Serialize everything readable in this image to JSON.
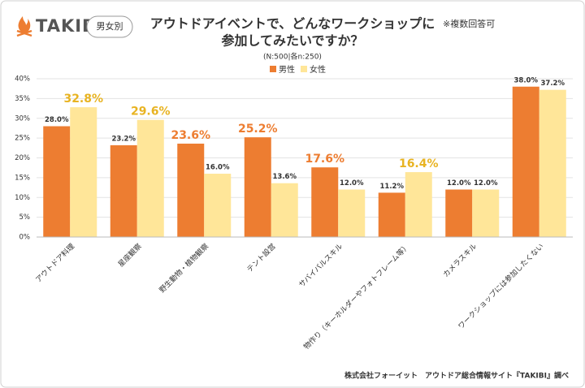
{
  "header": {
    "logo": "TAKIBI",
    "badge": "男女別",
    "note": "※複数回答可"
  },
  "chart_data": {
    "type": "bar",
    "title": [
      "アウトドアイベントで、どんなワークショップに",
      "参加してみたいですか？"
    ],
    "subtitle": "(N:500|各n:250)",
    "categories": [
      "アウトドア料理",
      "星座観察",
      "野生動物・植物観察",
      "テント設営",
      "サバイバルスキル",
      "物作り（キーホルダーやフォトフレーム等）",
      "カメラスキル",
      "ワークショップには参加したくない"
    ],
    "series": [
      {
        "name": "男性",
        "color": "#ed7d31",
        "highlight_color": "#ed7d31",
        "values": [
          28.0,
          23.2,
          23.6,
          25.2,
          17.6,
          11.2,
          12.0,
          38.0
        ],
        "value_labels": [
          "28.0%",
          "23.2%",
          "23.6%",
          "25.2%",
          "17.6%",
          "11.2%",
          "12.0%",
          "38.0%"
        ],
        "highlight": [
          false,
          false,
          true,
          true,
          true,
          false,
          false,
          false
        ]
      },
      {
        "name": "女性",
        "color": "#ffe699",
        "highlight_color": "#e8b321",
        "values": [
          32.8,
          29.6,
          16.0,
          13.6,
          12.0,
          16.4,
          12.0,
          37.2
        ],
        "value_labels": [
          "32.8%",
          "29.6%",
          "16.0%",
          "13.6%",
          "12.0%",
          "16.4%",
          "12.0%",
          "37.2%"
        ],
        "highlight": [
          true,
          true,
          false,
          false,
          false,
          true,
          false,
          false
        ]
      }
    ],
    "ylim": [
      0,
      40
    ],
    "yticks": [
      {
        "value": 0,
        "label": "0%"
      },
      {
        "value": 5,
        "label": "5%"
      },
      {
        "value": 10,
        "label": "10%"
      },
      {
        "value": 15,
        "label": "15%"
      },
      {
        "value": 20,
        "label": "20%"
      },
      {
        "value": 25,
        "label": "25%"
      },
      {
        "value": 30,
        "label": "30%"
      },
      {
        "value": 35,
        "label": "35%"
      },
      {
        "value": 40,
        "label": "40%"
      }
    ],
    "grid": true,
    "legend": "top"
  },
  "footer": "株式会社フォーイット　アウトドア総合情報サイト『TAKIBI』調べ"
}
